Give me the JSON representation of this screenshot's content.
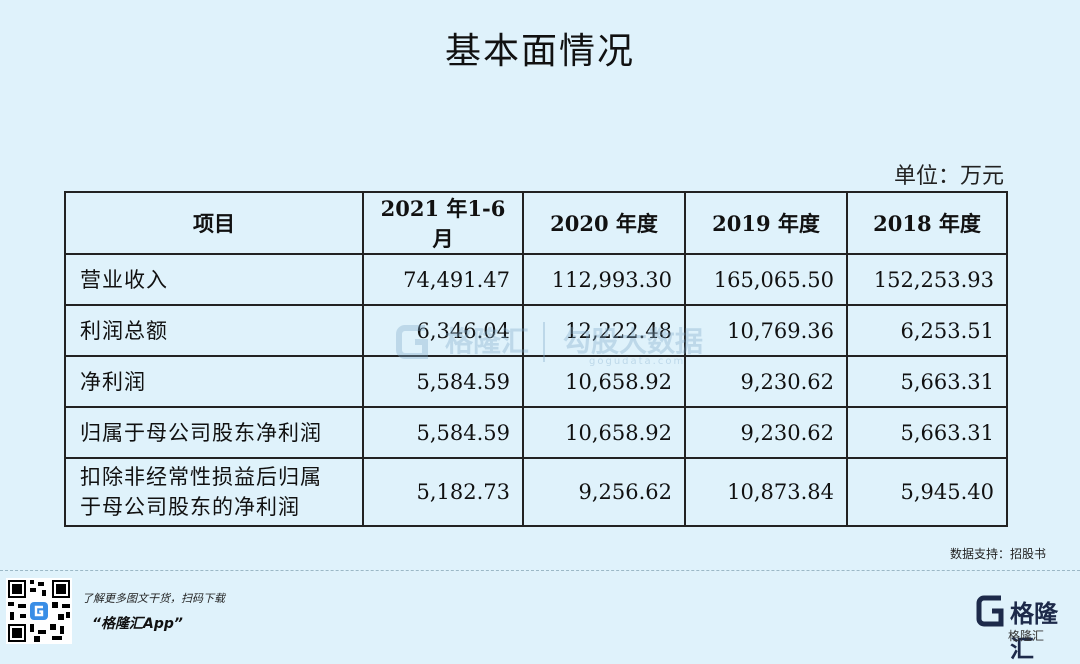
{
  "title": "基本面情况",
  "unit": "单位：万元",
  "table": {
    "headers": [
      "项目",
      "2021 年1-6月",
      "2020 年度",
      "2019 年度",
      "2018 年度"
    ],
    "rows": [
      {
        "label_lines": [
          "营业收入"
        ],
        "values": [
          "74,491.47",
          "112,993.30",
          "165,065.50",
          "152,253.93"
        ]
      },
      {
        "label_lines": [
          "利润总额"
        ],
        "values": [
          "6,346.04",
          "12,222.48",
          "10,769.36",
          "6,253.51"
        ]
      },
      {
        "label_lines": [
          "净利润"
        ],
        "values": [
          "5,584.59",
          "10,658.92",
          "9,230.62",
          "5,663.31"
        ]
      },
      {
        "label_lines": [
          "归属于母公司股东净利润"
        ],
        "values": [
          "5,584.59",
          "10,658.92",
          "9,230.62",
          "5,663.31"
        ]
      },
      {
        "label_lines": [
          "扣除非经常性损益后归属",
          "于母公司股东的净利润"
        ],
        "values": [
          "5,182.73",
          "9,256.62",
          "10,873.84",
          "5,945.40"
        ]
      }
    ]
  },
  "watermark": {
    "brand": "格隆汇",
    "sub_brand": "勾股大数据",
    "site": "gogudata.com"
  },
  "source": "数据支持：招股书",
  "footer": {
    "promo": "了解更多图文干货，扫码下载",
    "app_name": "“格隆汇App”",
    "brand_logo": "格隆汇",
    "wechat_mark": "格隆汇"
  },
  "colors": {
    "background": "#dff2fb",
    "brand_navy": "#1d2a4a",
    "watermark": "#7fa9c9"
  }
}
